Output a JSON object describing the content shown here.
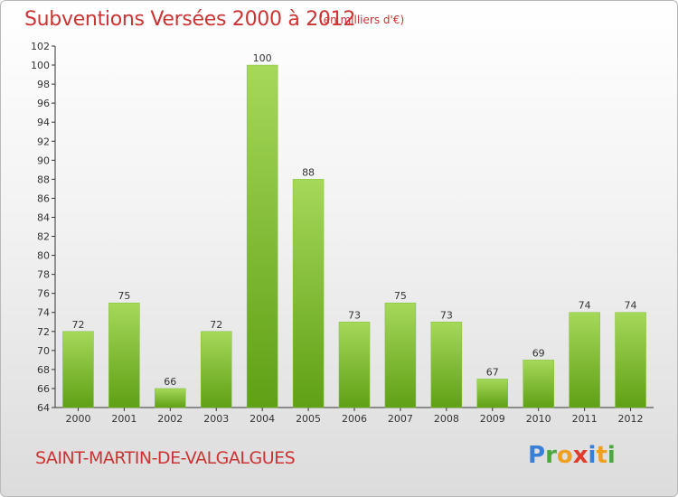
{
  "header": {
    "title": "Subventions Versées 2000 à 2012",
    "subtitle": "(en milliers d'€)"
  },
  "footer": {
    "commune": "SAINT-MARTIN-DE-VALGALGUES",
    "logo_text": "Proxiti"
  },
  "colors": {
    "bar_light": "#a6d85a",
    "bar_dark": "#5fa015",
    "title": "#cc3333"
  },
  "chart_data": {
    "type": "bar",
    "categories": [
      "2000",
      "2001",
      "2002",
      "2003",
      "2004",
      "2005",
      "2006",
      "2007",
      "2008",
      "2009",
      "2010",
      "2011",
      "2012"
    ],
    "values": [
      72,
      75,
      66,
      72,
      100,
      88,
      73,
      75,
      73,
      67,
      69,
      74,
      74
    ],
    "title": "Subventions Versées 2000 à 2012",
    "ylim": [
      64,
      102
    ],
    "yticks": [
      64,
      66,
      68,
      70,
      72,
      74,
      76,
      78,
      80,
      82,
      84,
      86,
      88,
      90,
      92,
      94,
      96,
      98,
      100,
      102
    ],
    "grid": false
  }
}
